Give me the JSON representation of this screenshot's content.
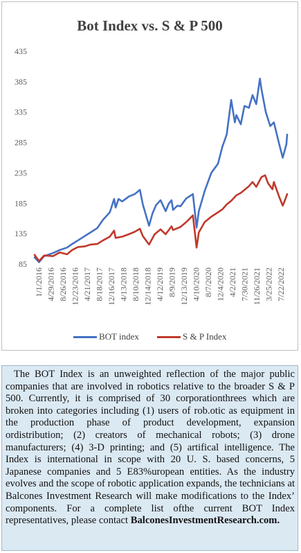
{
  "chart_data": {
    "type": "line",
    "title": "Bot Index vs. S & P 500",
    "xlabel": "",
    "ylabel": "",
    "ylim": [
      85,
      435
    ],
    "yticks": [
      85,
      135,
      185,
      235,
      285,
      335,
      385,
      435
    ],
    "x_tick_labels": [
      "1/1/2016",
      "4/29/2016",
      "8/26/2016",
      "12/23/2016",
      "4/21/2017",
      "8/18/2017",
      "12/16/2017",
      "4/13/2018",
      "8/10/2018",
      "12/14/2018",
      "4/12/2019",
      "8/9/2019",
      "12/13/2019",
      "4/10/2020",
      "8/7/2020",
      "12/4/2020",
      "4/2/2021",
      "7/30/2021",
      "11/26/2021",
      "3/25/2022",
      "7/22/2022"
    ],
    "x_range": [
      "2016-01-01",
      "2022-07-29"
    ],
    "grid": false,
    "legend_position": "bottom",
    "series": [
      {
        "name": "BOT index",
        "color": "#4472c4",
        "points": [
          [
            "2016-01-01",
            96
          ],
          [
            "2016-02-12",
            88
          ],
          [
            "2016-04-01",
            98
          ],
          [
            "2016-06-24",
            103
          ],
          [
            "2016-08-26",
            108
          ],
          [
            "2016-11-04",
            112
          ],
          [
            "2016-12-23",
            118
          ],
          [
            "2017-02-17",
            124
          ],
          [
            "2017-04-21",
            131
          ],
          [
            "2017-06-16",
            137
          ],
          [
            "2017-08-18",
            144
          ],
          [
            "2017-10-13",
            158
          ],
          [
            "2017-12-16",
            170
          ],
          [
            "2018-01-26",
            192
          ],
          [
            "2018-02-09",
            178
          ],
          [
            "2018-03-09",
            192
          ],
          [
            "2018-04-13",
            188
          ],
          [
            "2018-06-15",
            196
          ],
          [
            "2018-08-10",
            200
          ],
          [
            "2018-09-28",
            207
          ],
          [
            "2018-10-26",
            183
          ],
          [
            "2018-12-24",
            148
          ],
          [
            "2019-01-25",
            168
          ],
          [
            "2019-03-01",
            182
          ],
          [
            "2019-04-12",
            190
          ],
          [
            "2019-05-31",
            172
          ],
          [
            "2019-06-28",
            184
          ],
          [
            "2019-07-26",
            190
          ],
          [
            "2019-08-09",
            174
          ],
          [
            "2019-09-20",
            181
          ],
          [
            "2019-10-18",
            180
          ],
          [
            "2019-12-13",
            193
          ],
          [
            "2020-02-14",
            200
          ],
          [
            "2020-03-20",
            145
          ],
          [
            "2020-04-10",
            172
          ],
          [
            "2020-06-05",
            205
          ],
          [
            "2020-08-07",
            235
          ],
          [
            "2020-10-09",
            250
          ],
          [
            "2020-11-20",
            278
          ],
          [
            "2020-12-31",
            298
          ],
          [
            "2021-02-12",
            355
          ],
          [
            "2021-03-19",
            318
          ],
          [
            "2021-04-02",
            330
          ],
          [
            "2021-05-14",
            315
          ],
          [
            "2021-06-18",
            345
          ],
          [
            "2021-07-30",
            342
          ],
          [
            "2021-09-03",
            363
          ],
          [
            "2021-10-08",
            348
          ],
          [
            "2021-11-12",
            390
          ],
          [
            "2021-11-26",
            373
          ],
          [
            "2022-01-07",
            335
          ],
          [
            "2022-02-18",
            312
          ],
          [
            "2022-03-25",
            318
          ],
          [
            "2022-05-13",
            283
          ],
          [
            "2022-06-17",
            260
          ],
          [
            "2022-07-22",
            282
          ],
          [
            "2022-07-29",
            298
          ]
        ]
      },
      {
        "name": "S & P Index",
        "color": "#c0392b",
        "points": [
          [
            "2016-01-01",
            100
          ],
          [
            "2016-02-12",
            90
          ],
          [
            "2016-04-01",
            99
          ],
          [
            "2016-06-24",
            98
          ],
          [
            "2016-08-26",
            104
          ],
          [
            "2016-11-04",
            101
          ],
          [
            "2016-12-23",
            108
          ],
          [
            "2017-02-17",
            113
          ],
          [
            "2017-04-21",
            114
          ],
          [
            "2017-06-16",
            117
          ],
          [
            "2017-08-18",
            118
          ],
          [
            "2017-10-13",
            124
          ],
          [
            "2017-12-16",
            130
          ],
          [
            "2018-01-26",
            140
          ],
          [
            "2018-02-09",
            128
          ],
          [
            "2018-04-13",
            130
          ],
          [
            "2018-06-15",
            134
          ],
          [
            "2018-08-10",
            138
          ],
          [
            "2018-09-28",
            143
          ],
          [
            "2018-10-26",
            131
          ],
          [
            "2018-12-24",
            117
          ],
          [
            "2019-02-15",
            134
          ],
          [
            "2019-04-12",
            142
          ],
          [
            "2019-05-31",
            134
          ],
          [
            "2019-07-26",
            147
          ],
          [
            "2019-08-09",
            141
          ],
          [
            "2019-10-18",
            146
          ],
          [
            "2019-12-13",
            154
          ],
          [
            "2020-02-14",
            165
          ],
          [
            "2020-03-20",
            112
          ],
          [
            "2020-04-10",
            137
          ],
          [
            "2020-06-05",
            154
          ],
          [
            "2020-08-07",
            163
          ],
          [
            "2020-10-09",
            170
          ],
          [
            "2020-11-20",
            175
          ],
          [
            "2020-12-31",
            183
          ],
          [
            "2021-02-12",
            189
          ],
          [
            "2021-04-02",
            198
          ],
          [
            "2021-05-14",
            202
          ],
          [
            "2021-07-30",
            213
          ],
          [
            "2021-09-03",
            220
          ],
          [
            "2021-10-08",
            212
          ],
          [
            "2021-11-26",
            228
          ],
          [
            "2021-12-31",
            231
          ],
          [
            "2022-01-28",
            218
          ],
          [
            "2022-03-11",
            208
          ],
          [
            "2022-03-25",
            220
          ],
          [
            "2022-05-13",
            196
          ],
          [
            "2022-06-17",
            181
          ],
          [
            "2022-07-08",
            190
          ],
          [
            "2022-07-29",
            200
          ]
        ]
      }
    ]
  },
  "description": {
    "paragraph": "The BOT Index is an unweighted reflection of the major public companies that are involved in robotics relative to the broader S & P 500. Currently, it is comprised of 30 corporationthrees which are broken into categories including (1) users of rob.otic as equipment in the production phase of product development, expansion ordistribution; (2) creators of mechanical robots; (3) drone manufacturers; (4) 3-D printing; and (5) artifical intelligence. The Index is international in scope with 20 U. S. based concerns, 5 Japanese companies and 5 E83%uropean entities. As the industry evolves and the scope of robotic application expands, the technicians at Balcones Investment Research will make modifications to the Index’ components. For a complete list ofthe current BOT Index representatives, please contact",
    "link_text": "BalconesInvestmentResearch.com."
  }
}
